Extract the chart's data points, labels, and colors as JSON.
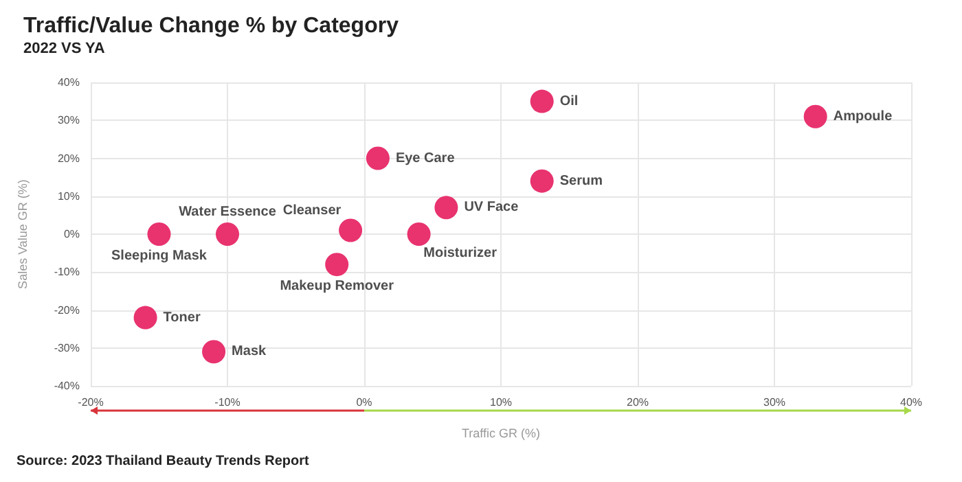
{
  "chart_data": {
    "type": "scatter",
    "title": "Traffic/Value Change % by Category",
    "subtitle": "2022 VS YA",
    "xlabel": "Traffic GR (%)",
    "ylabel": "Sales Value GR (%)",
    "x": [
      13,
      33,
      1,
      13,
      6,
      -1,
      4,
      -2,
      -10,
      -15,
      -16,
      -11
    ],
    "series": [
      {
        "color": "#e8336f",
        "values": [
          35,
          31,
          20,
          14,
          7,
          1,
          0,
          -8,
          0,
          0,
          -22,
          -31
        ]
      }
    ],
    "annotations": [
      {
        "text": "Oil",
        "x": 13,
        "y": 35
      },
      {
        "text": "Ampoule",
        "x": 33,
        "y": 31
      },
      {
        "text": "Eye Care",
        "x": 1,
        "y": 20
      },
      {
        "text": "Serum",
        "x": 13,
        "y": 14
      },
      {
        "text": "UV Face",
        "x": 6,
        "y": 7
      },
      {
        "text": "Cleanser",
        "x": -1,
        "y": 1
      },
      {
        "text": "Moisturizer",
        "x": 4,
        "y": 0
      },
      {
        "text": "Makeup Remover",
        "x": -2,
        "y": -8
      },
      {
        "text": "Water Essence",
        "x": -10,
        "y": 0
      },
      {
        "text": "Sleeping Mask",
        "x": -15,
        "y": 0
      },
      {
        "text": "Toner",
        "x": -16,
        "y": -22
      },
      {
        "text": "Mask",
        "x": -11,
        "y": -31
      },
      "Source: 2023 Thailand Beauty Trends Report"
    ],
    "xlim": [
      -20,
      40
    ],
    "xticks": [
      {
        "value": -20,
        "label": "-20%"
      },
      {
        "value": -10,
        "label": "-10%"
      },
      {
        "value": 0,
        "label": "0%"
      },
      {
        "value": 10,
        "label": "10%"
      },
      {
        "value": 20,
        "label": "20%"
      },
      {
        "value": 30,
        "label": "30%"
      },
      {
        "value": 40,
        "label": "40%"
      }
    ],
    "ylim": [
      -40,
      40
    ],
    "yticks": [
      {
        "value": -40,
        "label": "-40%"
      },
      {
        "value": -30,
        "label": "-30%"
      },
      {
        "value": -20,
        "label": "-20%"
      },
      {
        "value": -10,
        "label": "-10%"
      },
      {
        "value": 0,
        "label": "0%"
      },
      {
        "value": 10,
        "label": "10%"
      },
      {
        "value": 20,
        "label": "20%"
      },
      {
        "value": 30,
        "label": "30%"
      },
      {
        "value": 40,
        "label": "40%"
      }
    ],
    "grid": true,
    "marker": "circle"
  }
}
